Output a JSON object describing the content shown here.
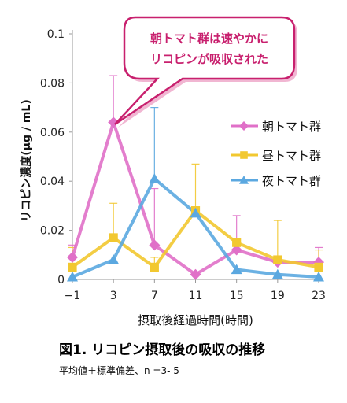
{
  "chart_data": {
    "type": "line",
    "title": "",
    "xlabel": "摂取後経過時間(時間)",
    "ylabel": "リコピン濃度(μg / mL)",
    "x": [
      -1,
      3,
      7,
      11,
      15,
      19,
      23
    ],
    "xticks": [
      "−1",
      "3",
      "7",
      "11",
      "15",
      "19",
      "23"
    ],
    "yticks": [
      "0",
      "0.02",
      "0.04",
      "0.06",
      "0.08",
      "0.1"
    ],
    "ylim": [
      0,
      0.1
    ],
    "xlim": [
      -1,
      23
    ],
    "legend_position": "right",
    "grid": false,
    "series": [
      {
        "name": "朝トマト群",
        "marker": "diamond",
        "color": "#e070c8",
        "values": [
          0.009,
          0.064,
          0.014,
          0.002,
          0.012,
          0.007,
          0.007
        ],
        "error": [
          0.005,
          0.019,
          0.023,
          0.0,
          0.014,
          0.0,
          0.006
        ]
      },
      {
        "name": "昼トマト群",
        "marker": "square",
        "color": "#f2c830",
        "values": [
          0.005,
          0.017,
          0.005,
          0.028,
          0.015,
          0.008,
          0.005
        ],
        "error": [
          0.008,
          0.014,
          0.004,
          0.019,
          0.0,
          0.016,
          0.007
        ]
      },
      {
        "name": "夜トマト群",
        "marker": "triangle",
        "color": "#5ba8e0",
        "values": [
          0.001,
          0.008,
          0.041,
          0.027,
          0.004,
          0.002,
          0.001
        ],
        "error": [
          0.0,
          0.0,
          0.029,
          0.0,
          0.0,
          0.0,
          0.0
        ]
      }
    ],
    "annotation": {
      "lines": [
        "朝トマト群は速やかに",
        "リコピンが吸収された"
      ]
    }
  },
  "caption": {
    "title": "図1. リコピン摂取後の吸収の推移",
    "note": "平均値＋標準偏差、n =3- 5"
  }
}
